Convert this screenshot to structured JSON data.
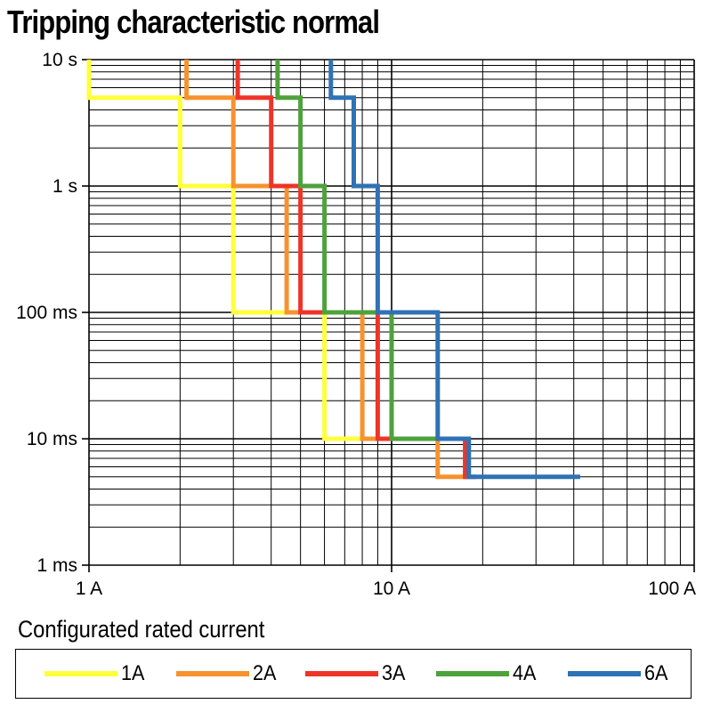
{
  "chart_data": {
    "type": "line",
    "title": "Tripping characteristic normal",
    "xscale": "log",
    "yscale": "log",
    "xlim": [
      1,
      100
    ],
    "ylim": [
      0.001,
      10
    ],
    "grid": true,
    "x_tick_labels": [
      "1 A",
      "10 A",
      "100 A"
    ],
    "x_tick_values": [
      1,
      10,
      100
    ],
    "y_tick_labels": [
      "10 s",
      "1 s",
      "100 ms",
      "10 ms",
      "1 ms"
    ],
    "y_tick_values": [
      10,
      1,
      0.1,
      0.01,
      0.001
    ],
    "legend_title": "Configurated rated current",
    "legend_position": "bottom",
    "series": [
      {
        "name": "1A",
        "color": "#ffff3c",
        "x": [
          1,
          1,
          2,
          2,
          3,
          3,
          6,
          6,
          9
        ],
        "y": [
          10,
          5,
          5,
          1,
          1,
          0.1,
          0.1,
          0.01,
          0.01
        ]
      },
      {
        "name": "2A",
        "color": "#f7922e",
        "x": [
          2.1,
          2.1,
          3,
          3,
          4.5,
          4.5,
          8,
          8,
          14.2,
          14.2,
          18
        ],
        "y": [
          10,
          5,
          5,
          1,
          1,
          0.1,
          0.1,
          0.01,
          0.01,
          0.005,
          0.005
        ]
      },
      {
        "name": "3A",
        "color": "#ee3428",
        "x": [
          3.1,
          3.1,
          4,
          4,
          5,
          5,
          9,
          9,
          17.5,
          17.5,
          19
        ],
        "y": [
          10,
          5,
          5,
          1,
          1,
          0.1,
          0.1,
          0.01,
          0.01,
          0.005,
          0.005
        ]
      },
      {
        "name": "4A",
        "color": "#4ea23c",
        "x": [
          4.2,
          4.2,
          5,
          5,
          6,
          6,
          10,
          10,
          17.7
        ],
        "y": [
          10,
          5,
          5,
          1,
          1,
          0.1,
          0.1,
          0.01,
          0.01
        ]
      },
      {
        "name": "6A",
        "color": "#2f72b5",
        "x": [
          6.3,
          6.3,
          7.5,
          7.5,
          9,
          9,
          14.2,
          14.2,
          18,
          18,
          42
        ],
        "y": [
          10,
          5,
          5,
          1,
          1,
          0.1,
          0.1,
          0.01,
          0.01,
          0.005,
          0.005
        ]
      }
    ]
  }
}
